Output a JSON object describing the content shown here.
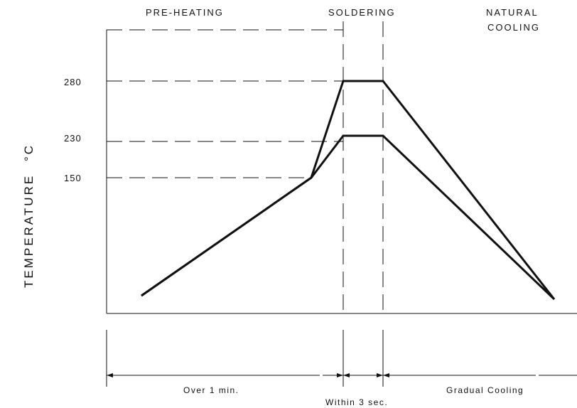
{
  "phases": {
    "preheating": "PRE-HEATING",
    "soldering": "SOLDERING",
    "natural_cooling_line1": "NATURAL",
    "natural_cooling_line2": "COOLING"
  },
  "ylabel": "TEMPERATURE",
  "yunit": "°C",
  "ticks": {
    "t280": "280",
    "t230": "230",
    "t150": "150"
  },
  "durations": {
    "preheat": "Over 1 min.",
    "solder": "Within 3 sec.",
    "cooling": "Gradual Cooling"
  },
  "chart_data": {
    "type": "line",
    "ylabel": "TEMPERATURE °C",
    "yticks": [
      150,
      230,
      280
    ],
    "series": [
      {
        "points": [
          {
            "phase": "start",
            "y": null
          },
          {
            "phase": "end of pre-heating",
            "y": 150
          },
          {
            "phase": "soldering start",
            "y": 280
          },
          {
            "phase": "soldering end",
            "y": 280
          },
          {
            "phase": "cooled",
            "y": null
          }
        ]
      },
      {
        "points": [
          {
            "phase": "start",
            "y": null
          },
          {
            "phase": "end of pre-heating",
            "y": 150
          },
          {
            "phase": "soldering start",
            "y": 230
          },
          {
            "phase": "soldering end",
            "y": 230
          },
          {
            "phase": "cooled",
            "y": null
          }
        ]
      }
    ]
  }
}
